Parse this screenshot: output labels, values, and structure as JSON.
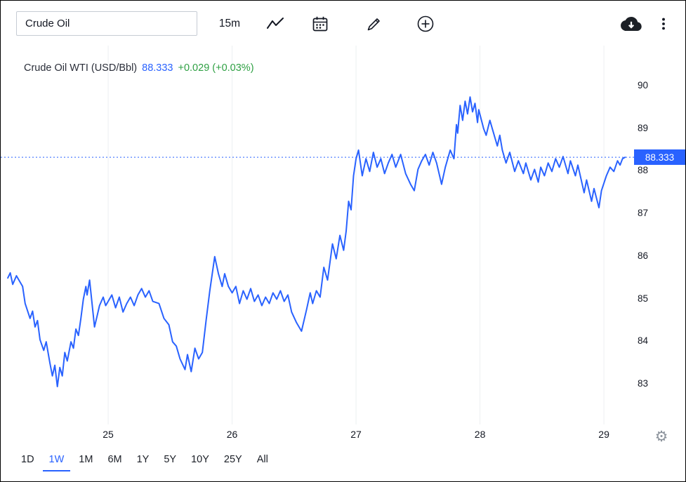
{
  "toolbar": {
    "symbol_value": "Crude Oil",
    "interval": "15m",
    "icon_names": [
      "line-chart-icon",
      "calendar-icon",
      "pencil-icon",
      "plus-circle-icon",
      "cloud-download-icon",
      "kebab-menu-icon",
      "gear-icon"
    ]
  },
  "legend": {
    "title": "Crude Oil WTI (USD/Bbl)",
    "price": "88.333",
    "change": "+0.029 (+0.03%)"
  },
  "price_scale": {
    "label": "88.333"
  },
  "ranges": {
    "items": [
      "1D",
      "1W",
      "1M",
      "6M",
      "1Y",
      "5Y",
      "10Y",
      "25Y",
      "All"
    ],
    "active": "1W"
  },
  "colors": {
    "line_blue": "#2962FF",
    "change_green": "#2EA043",
    "text_dark": "#131722",
    "grid": "#ECEFF1",
    "price_label_bg": "#2962FF",
    "icon_gray": "#8C939C"
  },
  "chart_data": {
    "type": "line",
    "title": "Crude Oil WTI (USD/Bbl)",
    "xlabel": "",
    "ylabel": "USD/Bbl",
    "interval": "15m",
    "last_price": 88.333,
    "change": 0.029,
    "change_percent": 0.03,
    "current_price_line": 88.333,
    "x_ticks": [
      25,
      26,
      27,
      28,
      29
    ],
    "x_tick_labels": [
      "25",
      "26",
      "27",
      "28",
      "29"
    ],
    "y_ticks": [
      90,
      89,
      88,
      87,
      86,
      85,
      84,
      83
    ],
    "xlim": [
      24.133,
      29.26
    ],
    "ylim": [
      82.06,
      90.955
    ],
    "grid": "vertical-only",
    "legend_position": "top-left",
    "line_color": "#2962FF",
    "series": [
      {
        "name": "Crude Oil WTI (USD/Bbl)",
        "points": [
          [
            24.19,
            85.5
          ],
          [
            24.21,
            85.62
          ],
          [
            24.23,
            85.35
          ],
          [
            24.26,
            85.55
          ],
          [
            24.31,
            85.3
          ],
          [
            24.33,
            84.9
          ],
          [
            24.37,
            84.55
          ],
          [
            24.39,
            84.72
          ],
          [
            24.41,
            84.35
          ],
          [
            24.43,
            84.5
          ],
          [
            24.45,
            84.05
          ],
          [
            24.48,
            83.8
          ],
          [
            24.5,
            84.0
          ],
          [
            24.53,
            83.5
          ],
          [
            24.55,
            83.2
          ],
          [
            24.57,
            83.45
          ],
          [
            24.59,
            82.95
          ],
          [
            24.61,
            83.4
          ],
          [
            24.63,
            83.2
          ],
          [
            24.65,
            83.75
          ],
          [
            24.67,
            83.55
          ],
          [
            24.7,
            84.0
          ],
          [
            24.72,
            83.85
          ],
          [
            24.74,
            84.3
          ],
          [
            24.76,
            84.15
          ],
          [
            24.78,
            84.55
          ],
          [
            24.8,
            85.0
          ],
          [
            24.82,
            85.3
          ],
          [
            24.83,
            85.1
          ],
          [
            24.85,
            85.45
          ],
          [
            24.87,
            84.9
          ],
          [
            24.89,
            84.35
          ],
          [
            24.91,
            84.6
          ],
          [
            24.93,
            84.85
          ],
          [
            24.96,
            85.05
          ],
          [
            24.98,
            84.85
          ],
          [
            25.0,
            84.95
          ],
          [
            25.03,
            85.1
          ],
          [
            25.06,
            84.8
          ],
          [
            25.09,
            85.05
          ],
          [
            25.12,
            84.7
          ],
          [
            25.15,
            84.9
          ],
          [
            25.18,
            85.05
          ],
          [
            25.21,
            84.85
          ],
          [
            25.24,
            85.1
          ],
          [
            25.27,
            85.25
          ],
          [
            25.3,
            85.05
          ],
          [
            25.33,
            85.2
          ],
          [
            25.36,
            84.95
          ],
          [
            25.41,
            84.9
          ],
          [
            25.45,
            84.55
          ],
          [
            25.49,
            84.4
          ],
          [
            25.52,
            84.0
          ],
          [
            25.55,
            83.9
          ],
          [
            25.58,
            83.6
          ],
          [
            25.62,
            83.35
          ],
          [
            25.64,
            83.7
          ],
          [
            25.67,
            83.3
          ],
          [
            25.7,
            83.85
          ],
          [
            25.73,
            83.6
          ],
          [
            25.76,
            83.75
          ],
          [
            25.79,
            84.5
          ],
          [
            25.82,
            85.2
          ],
          [
            25.86,
            86.0
          ],
          [
            25.89,
            85.6
          ],
          [
            25.92,
            85.3
          ],
          [
            25.94,
            85.6
          ],
          [
            25.97,
            85.3
          ],
          [
            26.0,
            85.15
          ],
          [
            26.03,
            85.3
          ],
          [
            26.06,
            84.9
          ],
          [
            26.09,
            85.2
          ],
          [
            26.12,
            85.0
          ],
          [
            26.15,
            85.25
          ],
          [
            26.18,
            84.95
          ],
          [
            26.21,
            85.1
          ],
          [
            26.24,
            84.85
          ],
          [
            26.27,
            85.05
          ],
          [
            26.3,
            84.9
          ],
          [
            26.33,
            85.15
          ],
          [
            26.36,
            85.0
          ],
          [
            26.39,
            85.2
          ],
          [
            26.42,
            84.95
          ],
          [
            26.45,
            85.1
          ],
          [
            26.48,
            84.7
          ],
          [
            26.52,
            84.45
          ],
          [
            26.56,
            84.25
          ],
          [
            26.6,
            84.75
          ],
          [
            26.63,
            85.15
          ],
          [
            26.65,
            84.9
          ],
          [
            26.68,
            85.2
          ],
          [
            26.71,
            85.05
          ],
          [
            26.74,
            85.75
          ],
          [
            26.77,
            85.45
          ],
          [
            26.81,
            86.3
          ],
          [
            26.84,
            85.95
          ],
          [
            26.87,
            86.5
          ],
          [
            26.9,
            86.15
          ],
          [
            26.92,
            86.6
          ],
          [
            26.94,
            87.3
          ],
          [
            26.96,
            87.1
          ],
          [
            26.98,
            87.9
          ],
          [
            27.0,
            88.3
          ],
          [
            27.02,
            88.5
          ],
          [
            27.05,
            87.9
          ],
          [
            27.08,
            88.3
          ],
          [
            27.11,
            88.0
          ],
          [
            27.14,
            88.45
          ],
          [
            27.17,
            88.1
          ],
          [
            27.2,
            88.3
          ],
          [
            27.23,
            87.95
          ],
          [
            27.26,
            88.2
          ],
          [
            27.29,
            88.4
          ],
          [
            27.32,
            88.1
          ],
          [
            27.36,
            88.4
          ],
          [
            27.4,
            87.95
          ],
          [
            27.44,
            87.7
          ],
          [
            27.47,
            87.55
          ],
          [
            27.5,
            88.05
          ],
          [
            27.53,
            88.25
          ],
          [
            27.56,
            88.4
          ],
          [
            27.59,
            88.15
          ],
          [
            27.62,
            88.45
          ],
          [
            27.65,
            88.2
          ],
          [
            27.69,
            87.7
          ],
          [
            27.72,
            88.1
          ],
          [
            27.76,
            88.5
          ],
          [
            27.79,
            88.3
          ],
          [
            27.81,
            89.1
          ],
          [
            27.82,
            88.9
          ],
          [
            27.84,
            89.55
          ],
          [
            27.86,
            89.2
          ],
          [
            27.88,
            89.65
          ],
          [
            27.9,
            89.35
          ],
          [
            27.92,
            89.75
          ],
          [
            27.94,
            89.4
          ],
          [
            27.96,
            89.6
          ],
          [
            27.98,
            89.15
          ],
          [
            27.99,
            89.45
          ],
          [
            28.03,
            89.0
          ],
          [
            28.05,
            88.85
          ],
          [
            28.08,
            89.2
          ],
          [
            28.1,
            89.0
          ],
          [
            28.14,
            88.6
          ],
          [
            28.16,
            88.85
          ],
          [
            28.18,
            88.5
          ],
          [
            28.21,
            88.2
          ],
          [
            28.24,
            88.45
          ],
          [
            28.28,
            88.0
          ],
          [
            28.31,
            88.25
          ],
          [
            28.35,
            87.95
          ],
          [
            28.37,
            88.2
          ],
          [
            28.41,
            87.8
          ],
          [
            28.44,
            88.05
          ],
          [
            28.47,
            87.75
          ],
          [
            28.49,
            88.1
          ],
          [
            28.52,
            87.9
          ],
          [
            28.55,
            88.2
          ],
          [
            28.58,
            88.0
          ],
          [
            28.61,
            88.3
          ],
          [
            28.64,
            88.1
          ],
          [
            28.67,
            88.35
          ],
          [
            28.71,
            87.95
          ],
          [
            28.73,
            88.25
          ],
          [
            28.77,
            87.9
          ],
          [
            28.79,
            88.15
          ],
          [
            28.84,
            87.5
          ],
          [
            28.86,
            87.8
          ],
          [
            28.9,
            87.3
          ],
          [
            28.92,
            87.6
          ],
          [
            28.96,
            87.15
          ],
          [
            28.98,
            87.55
          ],
          [
            29.02,
            87.9
          ],
          [
            29.05,
            88.1
          ],
          [
            29.08,
            88.0
          ],
          [
            29.11,
            88.25
          ],
          [
            29.13,
            88.15
          ],
          [
            29.15,
            88.3
          ],
          [
            29.17,
            88.333
          ]
        ]
      }
    ]
  }
}
